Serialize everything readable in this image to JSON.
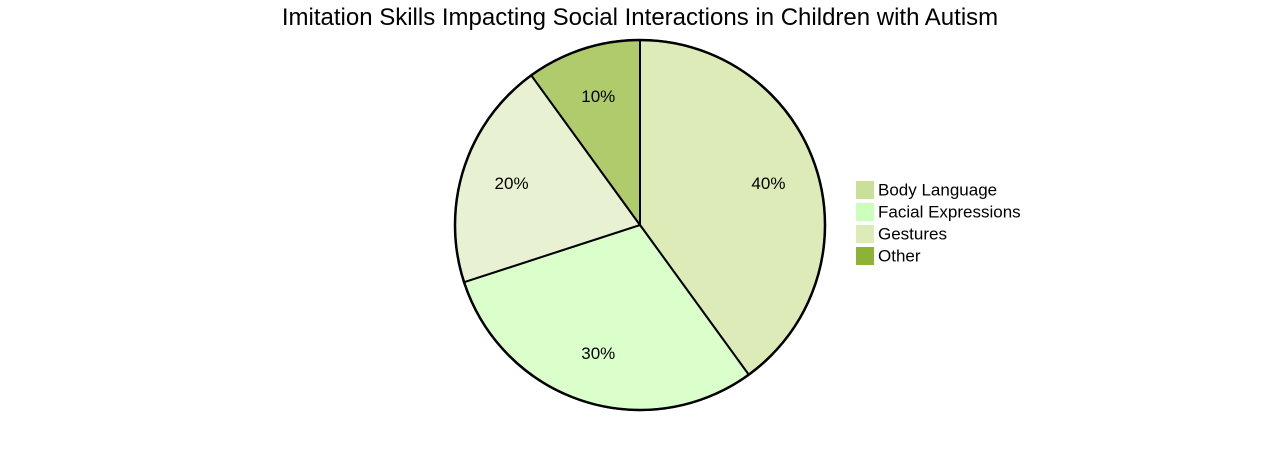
{
  "chart_data": {
    "type": "pie",
    "title": "Imitation Skills Impacting Social Interactions in Children with Autism",
    "legend_position": "right",
    "start_angle_deg": 0,
    "direction": "clockwise",
    "slices": [
      {
        "label": "Gestures",
        "value": 40,
        "display": "40%",
        "color": "#dcebb7"
      },
      {
        "label": "Facial Expressions",
        "value": 30,
        "display": "30%",
        "color": "#daffca"
      },
      {
        "label": "Body Language",
        "value": 20,
        "display": "20%",
        "color": "#e8f2d2"
      },
      {
        "label": "Other",
        "value": 10,
        "display": "10%",
        "color": "#b0cb6c"
      }
    ],
    "legend": [
      {
        "label": "Body Language",
        "color": "#c9e09b"
      },
      {
        "label": "Facial Expressions",
        "color": "#ccffbb"
      },
      {
        "label": "Gestures",
        "color": "#dcebb7"
      },
      {
        "label": "Other",
        "color": "#8cb335"
      }
    ]
  }
}
